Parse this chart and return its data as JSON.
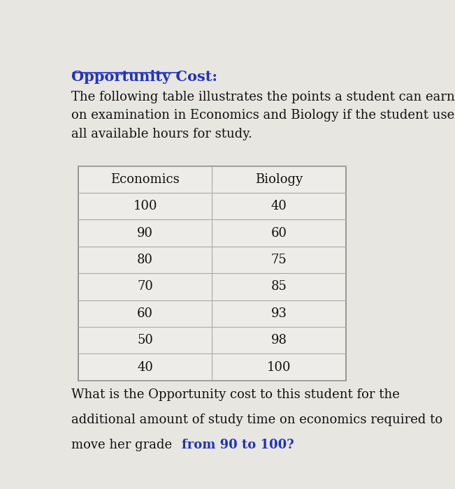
{
  "title": "Opportunity Cost:",
  "intro_text": "The following table illustrates the points a student can earn\non examination in Economics and Biology if the student uses\nall available hours for study.",
  "col_headers": [
    "Economics",
    "Biology"
  ],
  "table_data": [
    [
      "100",
      "40"
    ],
    [
      "90",
      "60"
    ],
    [
      "80",
      "75"
    ],
    [
      "70",
      "85"
    ],
    [
      "60",
      "93"
    ],
    [
      "50",
      "98"
    ],
    [
      "40",
      "100"
    ]
  ],
  "question_line1": "What is the Opportunity cost to this student for the",
  "question_line2": "additional amount of study time on economics required to",
  "question_line3_normal": "move her grade ",
  "question_line3_bold": "from 90 to 100?",
  "title_color": "#2233bb",
  "bold_color": "#2233bb",
  "normal_text_color": "#111111",
  "bg_color": "#e8e6e1",
  "table_bg": "#eeece8",
  "table_line_color": "#aaaaaa",
  "font_size_title": 15,
  "font_size_intro": 13,
  "font_size_table": 13,
  "font_size_question": 13
}
